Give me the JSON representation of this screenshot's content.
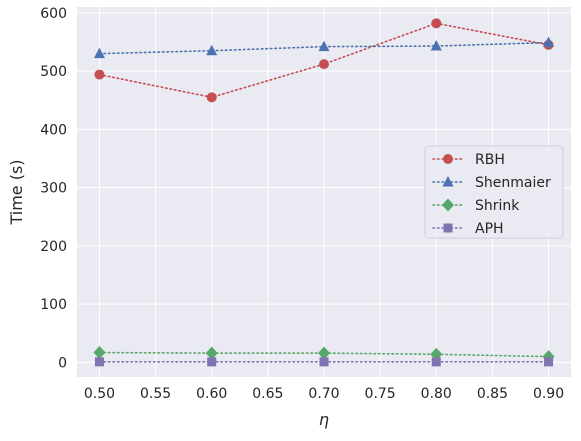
{
  "chart_data": {
    "type": "line",
    "xlabel": "η",
    "ylabel": "Time (s)",
    "xlim": [
      0.48,
      0.92
    ],
    "ylim": [
      -25,
      610
    ],
    "x_ticks": [
      "0.50",
      "0.55",
      "0.60",
      "0.65",
      "0.70",
      "0.75",
      "0.80",
      "0.85",
      "0.90"
    ],
    "y_ticks": [
      "0",
      "100",
      "200",
      "300",
      "400",
      "500",
      "600"
    ],
    "grid": true,
    "legend_position": "center-right",
    "x": [
      0.5,
      0.6,
      0.7,
      0.8,
      0.9
    ],
    "series": [
      {
        "name": "RBH",
        "values": [
          494,
          455,
          512,
          582,
          545
        ],
        "color": "#c44e52",
        "marker": "circle"
      },
      {
        "name": "Shenmaier",
        "values": [
          530,
          535,
          542,
          543,
          549
        ],
        "color": "#4c72b0",
        "marker": "triangle"
      },
      {
        "name": "Shrink",
        "values": [
          17,
          16,
          16,
          14,
          10
        ],
        "color": "#55a868",
        "marker": "diamond"
      },
      {
        "name": "APH",
        "values": [
          1,
          1,
          1,
          1,
          1
        ],
        "color": "#8172b2",
        "marker": "square"
      }
    ]
  }
}
